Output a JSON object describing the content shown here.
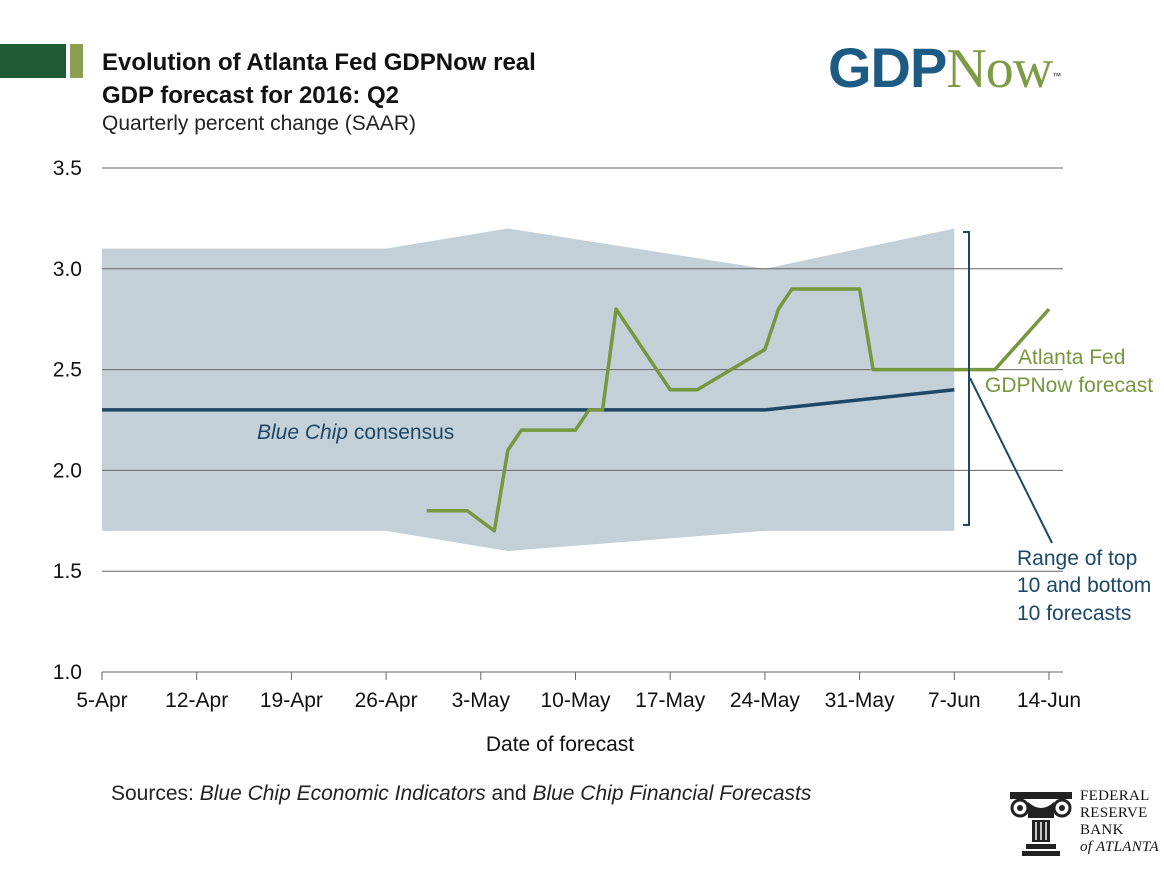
{
  "header": {
    "title_line1": "Evolution of Atlanta Fed GDPNow real",
    "title_line2": "GDP forecast for 2016: Q2",
    "subtitle": "Quarterly percent change (SAAR)",
    "logo_gdp": "GDP",
    "logo_now": "Now",
    "logo_tm": "™"
  },
  "colors": {
    "band": "#c3d0d8",
    "gdpnow": "#76973e",
    "bluechip": "#1c4766",
    "header_dark": "#1e5a33",
    "header_light": "#8aa050"
  },
  "chart_data": {
    "type": "line",
    "x_axis": {
      "title": "Date of forecast",
      "ticks": [
        "5-Apr",
        "12-Apr",
        "19-Apr",
        "26-Apr",
        "3-May",
        "10-May",
        "17-May",
        "24-May",
        "31-May",
        "7-Jun",
        "14-Jun"
      ],
      "range_days_after_5Apr": [
        0,
        70
      ]
    },
    "y_axis": {
      "ticks": [
        "1.0",
        "1.5",
        "2.0",
        "2.5",
        "3.0",
        "3.5"
      ],
      "ylim": [
        1.0,
        3.5
      ],
      "grid": true
    },
    "range_band": {
      "name": "Range of top 10 and bottom 10 forecasts",
      "x": [
        "5-Apr",
        "26-Apr",
        "5-May",
        "24-May",
        "7-Jun"
      ],
      "top": [
        3.1,
        3.1,
        3.2,
        3.0,
        3.2
      ],
      "bottom": [
        1.7,
        1.7,
        1.6,
        1.7,
        1.7
      ]
    },
    "series": [
      {
        "name": "Blue Chip consensus",
        "x": [
          "5-Apr",
          "24-May",
          "7-Jun"
        ],
        "values": [
          2.3,
          2.3,
          2.4
        ]
      },
      {
        "name": "Atlanta Fed GDPNow forecast",
        "x": [
          "29-Apr",
          "2-May",
          "4-May",
          "5-May",
          "6-May",
          "10-May",
          "11-May",
          "12-May",
          "13-May",
          "16-May",
          "17-May",
          "19-May",
          "24-May",
          "25-May",
          "26-May",
          "31-May",
          "1-Jun",
          "8-Jun",
          "10-Jun",
          "14-Jun"
        ],
        "values": [
          1.8,
          1.8,
          1.7,
          2.1,
          2.2,
          2.2,
          2.3,
          2.3,
          2.8,
          2.5,
          2.4,
          2.4,
          2.6,
          2.8,
          2.9,
          2.9,
          2.5,
          2.5,
          2.5,
          2.8
        ]
      }
    ],
    "annotations": {
      "bluechip_label_italic": "Blue Chip",
      "bluechip_label_rest": " consensus",
      "gdpnow_line1": "Atlanta Fed",
      "gdpnow_line2": "GDPNow forecast",
      "range_line1": "Range of top",
      "range_line2": "10 and bottom",
      "range_line3": "10 forecasts"
    }
  },
  "footer": {
    "sources_prefix": "Sources:",
    "source1": "Blue Chip Economic Indicators",
    "joiner": "and",
    "source2": "Blue Chip Financial Forecasts",
    "fed_line1": "FEDERAL",
    "fed_line2": "RESERVE",
    "fed_line3": "BANK",
    "fed_line4": "of ATLANTA"
  }
}
